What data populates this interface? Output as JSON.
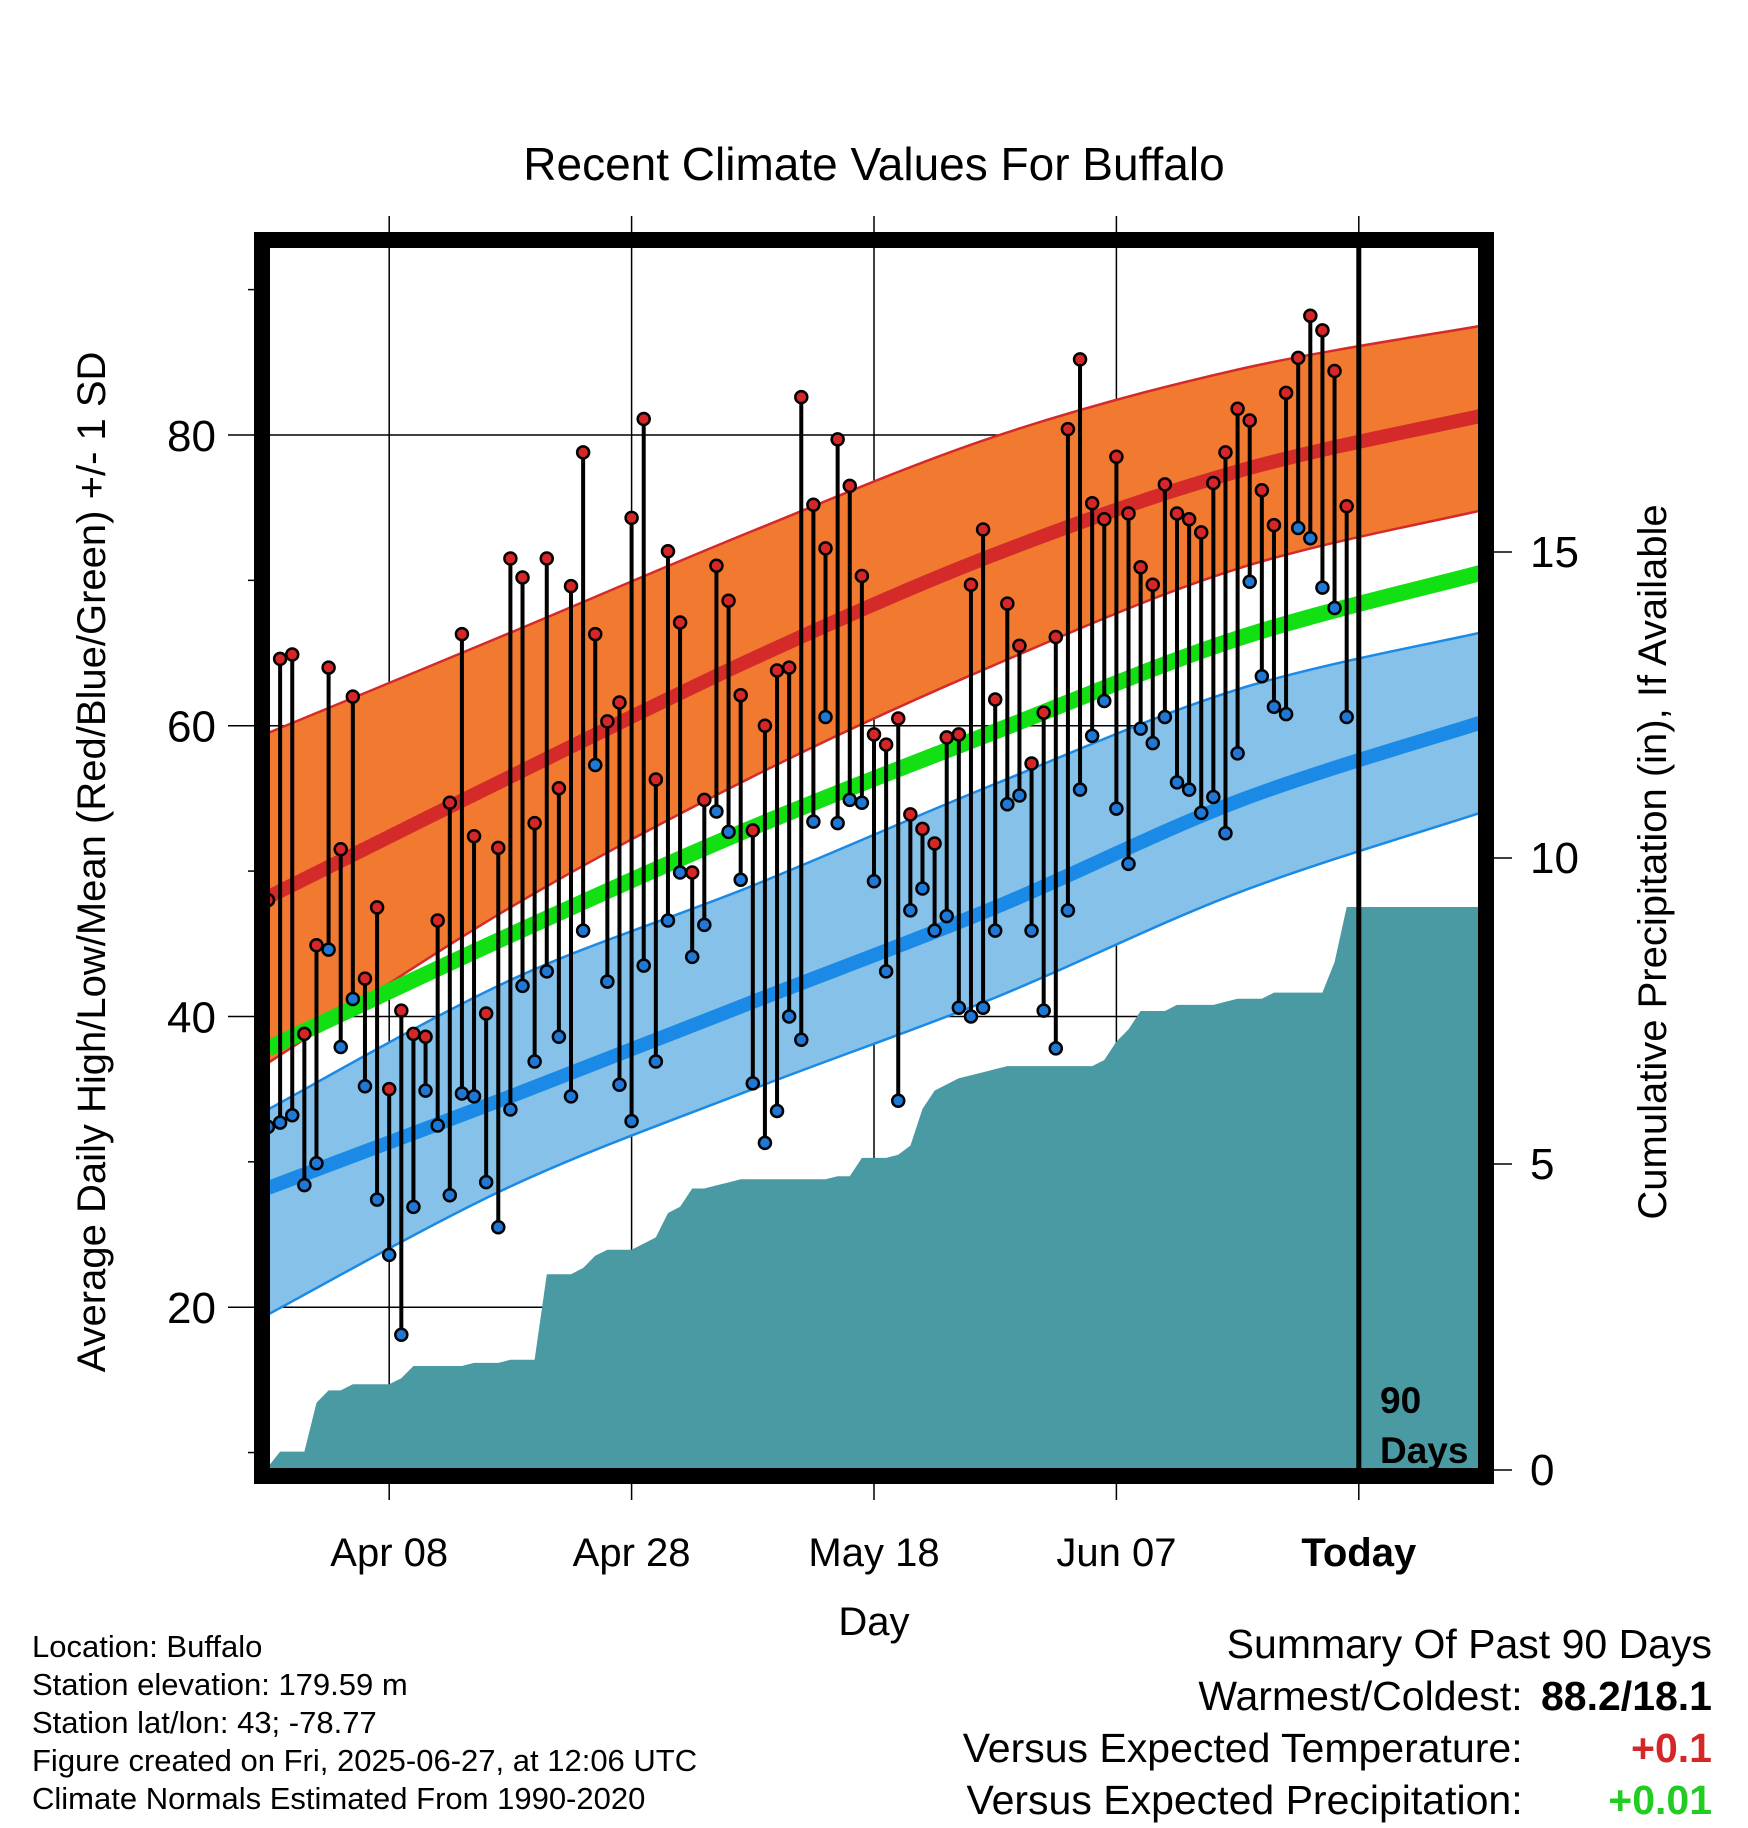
{
  "chart_data": {
    "type": "line",
    "title": "Recent Climate Values For Buffalo",
    "xlabel": "Day",
    "ylabel": "Average Daily High/Low/Mean (Red/Blue/Green) +/- 1 SD",
    "y2label": "Cumulative Precipitation (in), If Available",
    "x_tick_labels": [
      "Apr 08",
      "Apr 28",
      "May 18",
      "Jun 07",
      "Today"
    ],
    "x_tick_days": [
      10,
      30,
      50,
      70,
      90
    ],
    "xlim": [
      0,
      100
    ],
    "ylim": [
      8.8,
      93
    ],
    "y_ticks": [
      20,
      40,
      60,
      80
    ],
    "y2lim": [
      0,
      20
    ],
    "y2_ticks": [
      0,
      5,
      10,
      15
    ],
    "today_marker": {
      "day": 90,
      "label_line1": "90",
      "label_line2": "Days"
    },
    "normal_high": {
      "days": [
        0,
        20,
        40,
        60,
        80,
        100
      ],
      "mean": [
        48.2,
        56.5,
        64.6,
        71.8,
        77.5,
        81.3
      ],
      "lower": [
        36.8,
        47.5,
        56.5,
        64.2,
        70.8,
        74.8
      ],
      "upper": [
        59.5,
        66.4,
        73.4,
        79.9,
        84.5,
        87.5
      ]
    },
    "normal_mean": {
      "days": [
        0,
        20,
        40,
        60,
        80,
        100
      ],
      "values": [
        37.8,
        45.6,
        53.0,
        59.6,
        66.0,
        70.5
      ]
    },
    "normal_low": {
      "days": [
        0,
        20,
        40,
        60,
        80,
        100
      ],
      "mean": [
        28.2,
        34.5,
        41.0,
        47.5,
        54.8,
        60.2
      ],
      "lower": [
        19.5,
        28.3,
        35.0,
        41.3,
        48.5,
        54.0
      ],
      "upper": [
        33.6,
        42.5,
        49.0,
        56.0,
        62.5,
        66.4
      ]
    },
    "series": [
      {
        "name": "High",
        "color": "#d62728",
        "days": [
          0,
          1,
          2,
          3,
          4,
          5,
          6,
          7,
          8,
          9,
          10,
          11,
          12,
          13,
          14,
          15,
          16,
          17,
          18,
          19,
          20,
          21,
          22,
          23,
          24,
          25,
          26,
          27,
          28,
          29,
          30,
          31,
          32,
          33,
          34,
          35,
          36,
          37,
          38,
          39,
          40,
          41,
          42,
          43,
          44,
          45,
          46,
          47,
          48,
          49,
          50,
          51,
          52,
          53,
          54,
          55,
          56,
          57,
          58,
          59,
          60,
          61,
          62,
          63,
          64,
          65,
          66,
          67,
          68,
          69,
          70,
          71,
          72,
          73,
          74,
          75,
          76,
          77,
          78,
          79,
          80,
          81,
          82,
          83,
          84,
          85,
          86,
          87,
          88,
          89
        ],
        "values": [
          48.0,
          64.6,
          64.9,
          38.8,
          44.9,
          64.0,
          51.5,
          62.0,
          42.6,
          47.5,
          35.0,
          40.4,
          38.8,
          38.6,
          46.6,
          54.7,
          66.3,
          52.4,
          40.2,
          51.6,
          71.5,
          70.2,
          53.3,
          71.5,
          55.7,
          69.6,
          78.8,
          66.3,
          60.3,
          61.6,
          74.3,
          81.1,
          56.3,
          72.0,
          67.1,
          49.9,
          54.9,
          71.0,
          68.6,
          62.1,
          52.8,
          60.0,
          63.8,
          64.0,
          82.6,
          75.2,
          72.2,
          79.7,
          76.5,
          70.3,
          59.4,
          58.7,
          60.5,
          53.9,
          52.9,
          51.9,
          59.2,
          59.4,
          69.7,
          73.5,
          61.8,
          68.4,
          65.5,
          57.4,
          60.9,
          66.1,
          80.4,
          85.2,
          75.3,
          74.2,
          78.5,
          74.6,
          70.9,
          69.7,
          76.6,
          74.6,
          74.2,
          73.3,
          76.7,
          78.8,
          81.8,
          81.0,
          76.2,
          73.8,
          82.9,
          85.3,
          88.2,
          87.2,
          84.4,
          75.1
        ]
      },
      {
        "name": "Low",
        "color": "#1f77d6",
        "days": [
          0,
          1,
          2,
          3,
          4,
          5,
          6,
          7,
          8,
          9,
          10,
          11,
          12,
          13,
          14,
          15,
          16,
          17,
          18,
          19,
          20,
          21,
          22,
          23,
          24,
          25,
          26,
          27,
          28,
          29,
          30,
          31,
          32,
          33,
          34,
          35,
          36,
          37,
          38,
          39,
          40,
          41,
          42,
          43,
          44,
          45,
          46,
          47,
          48,
          49,
          50,
          51,
          52,
          53,
          54,
          55,
          56,
          57,
          58,
          59,
          60,
          61,
          62,
          63,
          64,
          65,
          66,
          67,
          68,
          69,
          70,
          71,
          72,
          73,
          74,
          75,
          76,
          77,
          78,
          79,
          80,
          81,
          82,
          83,
          84,
          85,
          86,
          87,
          88,
          89
        ],
        "values": [
          32.4,
          32.7,
          33.2,
          28.4,
          29.9,
          44.6,
          37.9,
          41.2,
          35.2,
          27.4,
          23.6,
          18.1,
          26.9,
          34.9,
          32.5,
          27.7,
          34.7,
          34.5,
          28.6,
          25.5,
          33.6,
          42.1,
          36.9,
          43.1,
          38.6,
          34.5,
          45.9,
          57.3,
          42.4,
          35.3,
          32.8,
          43.5,
          36.9,
          46.6,
          49.9,
          44.1,
          46.3,
          54.1,
          52.7,
          49.4,
          35.4,
          31.3,
          33.5,
          40.0,
          38.4,
          53.4,
          60.6,
          53.3,
          54.9,
          54.7,
          49.3,
          43.1,
          34.2,
          47.3,
          48.8,
          45.9,
          46.9,
          40.6,
          40.0,
          40.6,
          45.9,
          54.6,
          55.2,
          45.9,
          40.4,
          37.8,
          47.3,
          55.6,
          59.3,
          61.7,
          54.3,
          50.5,
          59.8,
          58.8,
          60.6,
          56.1,
          55.6,
          54.0,
          55.1,
          52.6,
          58.1,
          69.9,
          63.4,
          61.3,
          60.8,
          73.6,
          72.9,
          69.5,
          68.1,
          60.6
        ]
      },
      {
        "name": "Cumulative Precipitation",
        "color": "#4a9aa3",
        "axis": "y2",
        "days": [
          0,
          1,
          2,
          3,
          4,
          5,
          6,
          7,
          8,
          9,
          10,
          11,
          12,
          13,
          14,
          15,
          16,
          17,
          18,
          19,
          20,
          21,
          22,
          23,
          24,
          25,
          26,
          27,
          28,
          29,
          30,
          31,
          32,
          33,
          34,
          35,
          36,
          37,
          38,
          39,
          40,
          41,
          42,
          43,
          44,
          45,
          46,
          47,
          48,
          49,
          50,
          51,
          52,
          53,
          54,
          55,
          56,
          57,
          58,
          59,
          60,
          61,
          62,
          63,
          64,
          65,
          66,
          67,
          68,
          69,
          70,
          71,
          72,
          73,
          74,
          75,
          76,
          77,
          78,
          79,
          80,
          81,
          82,
          83,
          84,
          85,
          86,
          87,
          88,
          89,
          90,
          91,
          92,
          93,
          94,
          95,
          96,
          97,
          98,
          99,
          100
        ],
        "values": [
          0.05,
          0.3,
          0.3,
          0.3,
          1.1,
          1.3,
          1.3,
          1.4,
          1.4,
          1.4,
          1.4,
          1.5,
          1.7,
          1.7,
          1.7,
          1.7,
          1.7,
          1.75,
          1.75,
          1.75,
          1.8,
          1.8,
          1.8,
          3.2,
          3.2,
          3.2,
          3.3,
          3.5,
          3.6,
          3.6,
          3.6,
          3.7,
          3.8,
          4.2,
          4.3,
          4.6,
          4.6,
          4.65,
          4.7,
          4.75,
          4.75,
          4.75,
          4.75,
          4.75,
          4.75,
          4.75,
          4.75,
          4.8,
          4.8,
          5.1,
          5.1,
          5.1,
          5.15,
          5.3,
          5.9,
          6.2,
          6.3,
          6.4,
          6.45,
          6.5,
          6.55,
          6.6,
          6.6,
          6.6,
          6.6,
          6.6,
          6.6,
          6.6,
          6.6,
          6.7,
          7.0,
          7.2,
          7.5,
          7.5,
          7.5,
          7.6,
          7.6,
          7.6,
          7.6,
          7.65,
          7.7,
          7.7,
          7.7,
          7.8,
          7.8,
          7.8,
          7.8,
          7.8,
          8.3,
          9.2,
          9.2,
          9.2,
          9.2,
          9.2,
          9.2,
          9.2,
          9.2,
          9.2,
          9.2,
          9.2,
          9.2
        ]
      }
    ],
    "grid": true
  },
  "footer": {
    "location": "Location: Buffalo",
    "elevation": "Station elevation: 179.59 m",
    "latlon": "Station lat/lon: 43; -78.77",
    "created": "Figure created on Fri, 2025-06-27, at 12:06 UTC",
    "normals": "Climate Normals Estimated From 1990-2020"
  },
  "summary": {
    "heading": "Summary Of Past 90 Days",
    "warmest_coldest_label": "Warmest/Coldest:",
    "warmest_coldest_value": "88.2/18.1",
    "temp_label": "Versus Expected Temperature:",
    "temp_value": "+0.1",
    "temp_color": "#d62728",
    "precip_label": "Versus Expected Precipitation:",
    "precip_value": "+0.01",
    "precip_color": "#22cc22"
  },
  "colors": {
    "high_band": "#f27a30",
    "high_line": "#d42a2a",
    "low_band": "#85c1e8",
    "low_line": "#1a8ae6",
    "mean_line": "#12e012",
    "precip_fill": "#4a9aa3"
  }
}
